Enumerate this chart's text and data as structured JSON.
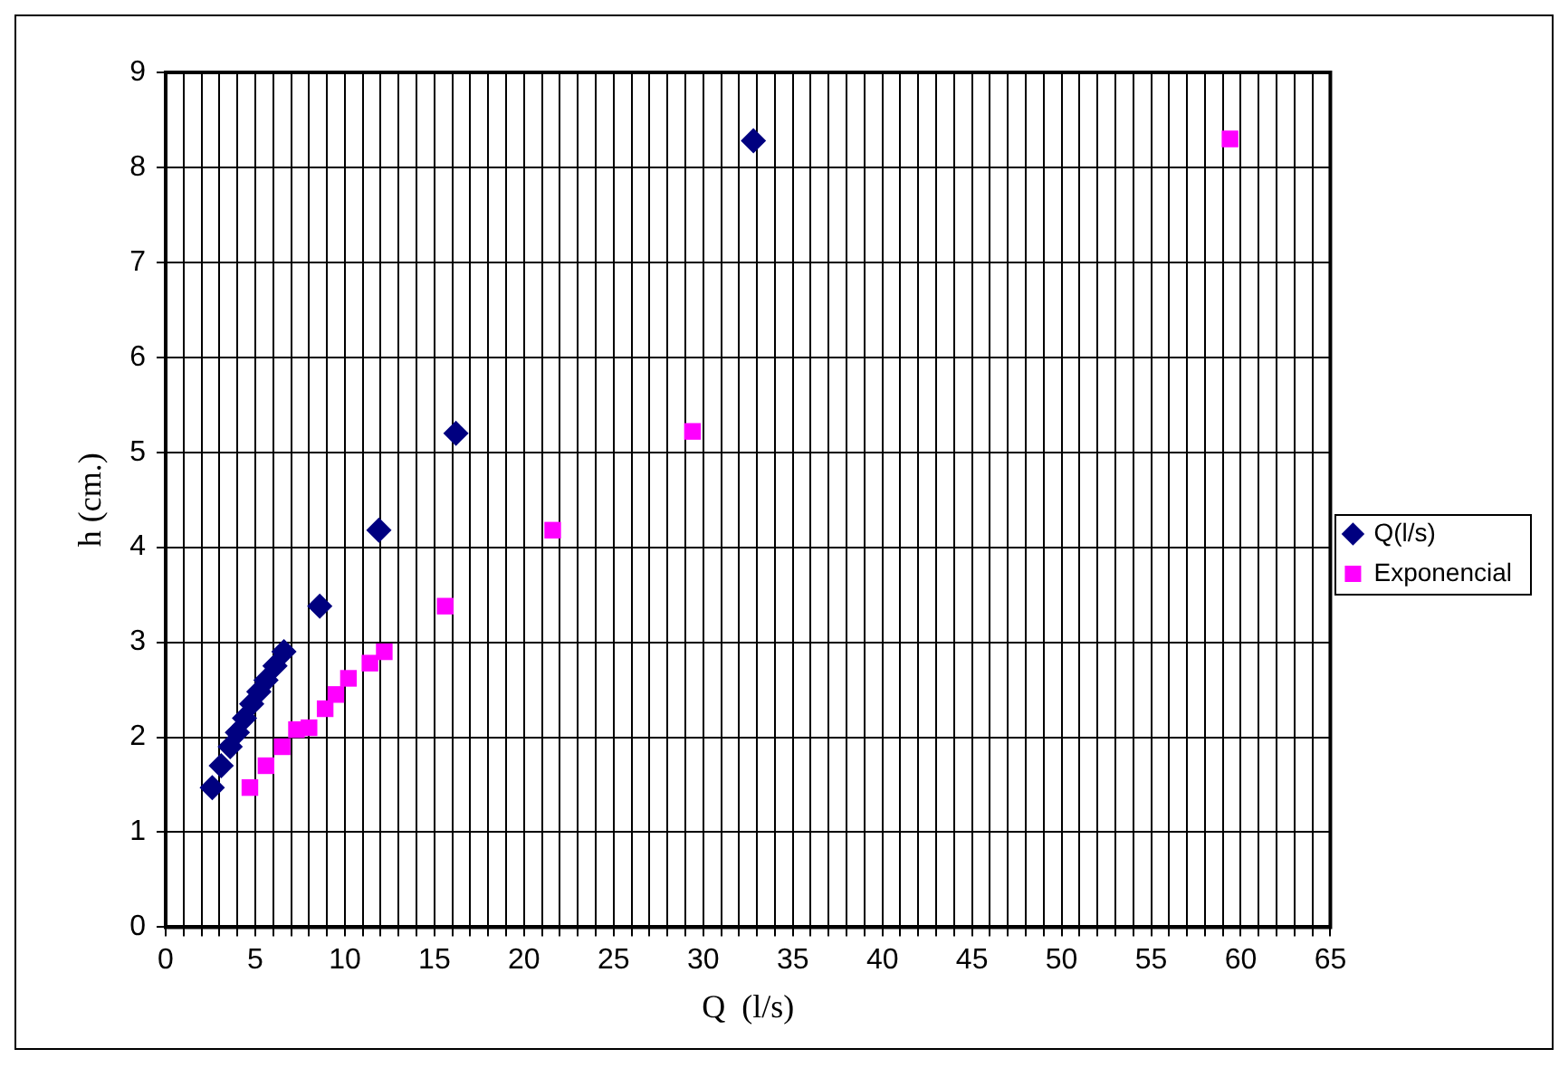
{
  "chart_data": {
    "type": "scatter",
    "xlabel": "Q  (l/s)",
    "ylabel": "h (cm.)",
    "xlim": [
      0,
      65
    ],
    "xticks": [
      0,
      {
        "value": 1,
        "label": null
      },
      {
        "value": 2,
        "label": null
      },
      {
        "value": 3,
        "label": null
      },
      {
        "value": 4,
        "label": null
      },
      5,
      {
        "value": 6,
        "label": null
      },
      {
        "value": 7,
        "label": null
      },
      {
        "value": 8,
        "label": null
      },
      {
        "value": 9,
        "label": null
      },
      10,
      {
        "value": 11,
        "label": null
      },
      {
        "value": 12,
        "label": null
      },
      {
        "value": 13,
        "label": null
      },
      {
        "value": 14,
        "label": null
      },
      15,
      {
        "value": 16,
        "label": null
      },
      {
        "value": 17,
        "label": null
      },
      {
        "value": 18,
        "label": null
      },
      {
        "value": 19,
        "label": null
      },
      20,
      {
        "value": 21,
        "label": null
      },
      {
        "value": 22,
        "label": null
      },
      {
        "value": 23,
        "label": null
      },
      {
        "value": 24,
        "label": null
      },
      25,
      {
        "value": 26,
        "label": null
      },
      {
        "value": 27,
        "label": null
      },
      {
        "value": 28,
        "label": null
      },
      {
        "value": 29,
        "label": null
      },
      30,
      {
        "value": 31,
        "label": null
      },
      {
        "value": 32,
        "label": null
      },
      {
        "value": 33,
        "label": null
      },
      {
        "value": 34,
        "label": null
      },
      35,
      {
        "value": 36,
        "label": null
      },
      {
        "value": 37,
        "label": null
      },
      {
        "value": 38,
        "label": null
      },
      {
        "value": 39,
        "label": null
      },
      40,
      {
        "value": 41,
        "label": null
      },
      {
        "value": 42,
        "label": null
      },
      {
        "value": 43,
        "label": null
      },
      {
        "value": 44,
        "label": null
      },
      45,
      {
        "value": 46,
        "label": null
      },
      {
        "value": 47,
        "label": null
      },
      {
        "value": 48,
        "label": null
      },
      {
        "value": 49,
        "label": null
      },
      50,
      {
        "value": 51,
        "label": null
      },
      {
        "value": 52,
        "label": null
      },
      {
        "value": 53,
        "label": null
      },
      {
        "value": 54,
        "label": null
      },
      55,
      {
        "value": 56,
        "label": null
      },
      {
        "value": 57,
        "label": null
      },
      {
        "value": 58,
        "label": null
      },
      {
        "value": 59,
        "label": null
      },
      60,
      {
        "value": 61,
        "label": null
      },
      {
        "value": 62,
        "label": null
      },
      {
        "value": 63,
        "label": null
      },
      {
        "value": 64,
        "label": null
      },
      65
    ],
    "ylim": [
      0,
      9
    ],
    "yticks": [
      0,
      1,
      2,
      3,
      4,
      5,
      6,
      7,
      8,
      9
    ],
    "grid": true,
    "legend": "right",
    "series": [
      {
        "name": "Q(l/s)",
        "color": "#000080",
        "marker": "diamond",
        "x": [
          2.6,
          3.1,
          3.6,
          4.0,
          4.4,
          4.8,
          5.2,
          5.6,
          6.1,
          6.6,
          8.6,
          11.9,
          16.2,
          32.8
        ],
        "values": [
          1.47,
          1.7,
          1.9,
          2.05,
          2.2,
          2.35,
          2.48,
          2.6,
          2.75,
          2.9,
          3.38,
          4.18,
          5.2,
          8.28
        ]
      },
      {
        "name": "Exponencial",
        "color": "#ff00ff",
        "marker": "square",
        "x": [
          4.7,
          5.6,
          6.5,
          7.3,
          8.0,
          8.9,
          9.5,
          10.2,
          11.4,
          12.2,
          15.6,
          21.6,
          29.4,
          59.4
        ],
        "values": [
          1.47,
          1.7,
          1.9,
          2.08,
          2.1,
          2.3,
          2.45,
          2.62,
          2.78,
          2.9,
          3.38,
          4.18,
          5.22,
          8.3
        ]
      }
    ]
  }
}
